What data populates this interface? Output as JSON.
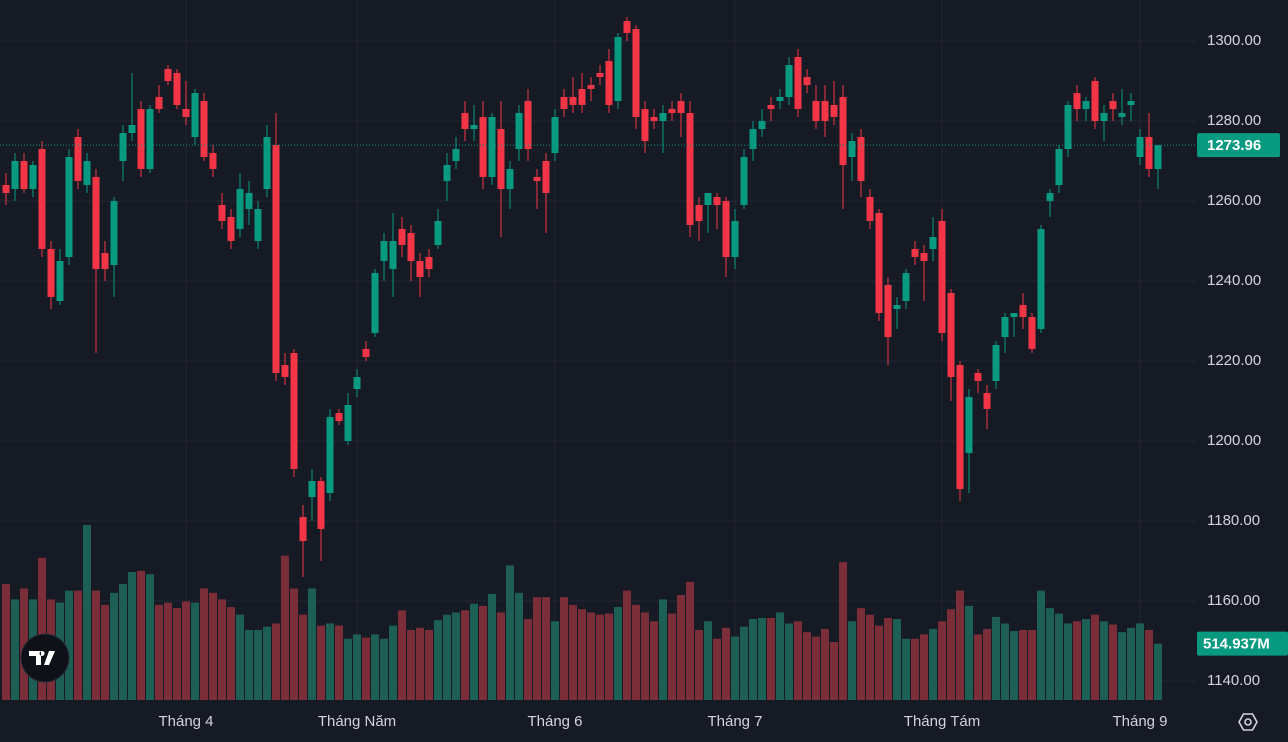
{
  "chart_data": {
    "type": "candlestick",
    "ylim": [
      1135.25,
      1310.25
    ],
    "yticks": [
      {
        "value": 1140,
        "label": "1140.00"
      },
      {
        "value": 1160,
        "label": "1160.00"
      },
      {
        "value": 1180,
        "label": "1180.00"
      },
      {
        "value": 1200,
        "label": "1200.00"
      },
      {
        "value": 1220,
        "label": "1220.00"
      },
      {
        "value": 1240,
        "label": "1240.00"
      },
      {
        "value": 1260,
        "label": "1260.00"
      },
      {
        "value": 1280,
        "label": "1280.00"
      },
      {
        "value": 1300,
        "label": "1300.00"
      }
    ],
    "grid": true,
    "up_color": "#089981",
    "down_color": "#f23645",
    "volume_up_color": "#1d5f55",
    "volume_down_color": "#7b2e38",
    "last_volume_label": "514.937M",
    "categories": [
      null,
      null,
      null,
      null,
      null,
      null,
      null,
      null,
      null,
      null,
      null,
      null,
      null,
      null,
      null,
      null,
      null,
      null,
      null,
      null,
      "Tháng 4",
      null,
      null,
      null,
      null,
      null,
      null,
      null,
      null,
      null,
      null,
      null,
      null,
      null,
      null,
      null,
      null,
      null,
      null,
      "Tháng Năm",
      null,
      null,
      null,
      null,
      null,
      null,
      null,
      null,
      null,
      null,
      null,
      null,
      null,
      null,
      null,
      null,
      null,
      null,
      null,
      null,
      null,
      "Tháng 6",
      null,
      null,
      null,
      null,
      null,
      null,
      null,
      null,
      null,
      null,
      null,
      null,
      null,
      null,
      null,
      null,
      null,
      null,
      null,
      "Tháng 7",
      null,
      null,
      null,
      null,
      null,
      null,
      null,
      null,
      null,
      null,
      null,
      null,
      null,
      null,
      null,
      null,
      null,
      null,
      null,
      null,
      null,
      null,
      "Tháng Tám",
      null,
      null,
      null,
      null,
      null,
      null,
      null,
      null,
      null,
      null,
      null,
      null,
      null,
      null,
      null,
      null,
      null,
      null,
      null,
      null,
      null,
      "Tháng 9",
      null,
      null
    ],
    "ohlc": [
      [
        1264,
        1267,
        1259,
        1262
      ],
      [
        1263,
        1272,
        1260,
        1270
      ],
      [
        1270,
        1272,
        1262,
        1263
      ],
      [
        1263,
        1270,
        1261,
        1269
      ],
      [
        1273,
        1275,
        1246,
        1248
      ],
      [
        1248,
        1250,
        1233,
        1236
      ],
      [
        1235,
        1248,
        1234,
        1245
      ],
      [
        1246,
        1273,
        1244,
        1271
      ],
      [
        1276,
        1278,
        1263,
        1265
      ],
      [
        1264,
        1272,
        1262,
        1270
      ],
      [
        1266,
        1268,
        1222,
        1243
      ],
      [
        1247,
        1250,
        1240,
        1243
      ],
      [
        1244,
        1261,
        1236,
        1260
      ],
      [
        1270,
        1279,
        1265,
        1277
      ],
      [
        1277,
        1292,
        1275,
        1279
      ],
      [
        1283,
        1285,
        1266,
        1268
      ],
      [
        1268,
        1284,
        1267,
        1283
      ],
      [
        1286,
        1289,
        1282,
        1283
      ],
      [
        1293,
        1294,
        1289,
        1290
      ],
      [
        1292,
        1293,
        1283,
        1284
      ],
      [
        1283,
        1290,
        1279,
        1281
      ],
      [
        1276,
        1288,
        1274,
        1287
      ],
      [
        1285,
        1287,
        1270,
        1271
      ],
      [
        1272,
        1274,
        1266,
        1268
      ],
      [
        1259,
        1262,
        1253,
        1255
      ],
      [
        1256,
        1258,
        1248,
        1250
      ],
      [
        1253,
        1267,
        1251,
        1263
      ],
      [
        1258,
        1265,
        1254,
        1262
      ],
      [
        1250,
        1260,
        1248,
        1258
      ],
      [
        1263,
        1279,
        1261,
        1276
      ],
      [
        1274,
        1282,
        1215,
        1217
      ],
      [
        1219,
        1222,
        1214,
        1216
      ],
      [
        1222,
        1223,
        1191,
        1193
      ],
      [
        1181,
        1184,
        1166,
        1175
      ],
      [
        1186,
        1193,
        1180,
        1190
      ],
      [
        1190,
        1191,
        1170,
        1178
      ],
      [
        1187,
        1208,
        1185,
        1206
      ],
      [
        1207,
        1208,
        1204,
        1205
      ],
      [
        1200,
        1212,
        1199,
        1209
      ],
      [
        1213,
        1218,
        1211,
        1216
      ],
      [
        1223,
        1225,
        1220,
        1221
      ],
      [
        1227,
        1243,
        1226,
        1242
      ],
      [
        1245,
        1252,
        1240,
        1250
      ],
      [
        1243,
        1257,
        1236,
        1250
      ],
      [
        1253,
        1256,
        1246,
        1249
      ],
      [
        1252,
        1254,
        1240,
        1245
      ],
      [
        1245,
        1247,
        1236,
        1241
      ],
      [
        1246,
        1248,
        1241,
        1243
      ],
      [
        1249,
        1258,
        1248,
        1255
      ],
      [
        1265,
        1272,
        1260,
        1269
      ],
      [
        1270,
        1276,
        1268,
        1273
      ],
      [
        1282,
        1285,
        1275,
        1278
      ],
      [
        1278,
        1284,
        1275,
        1279
      ],
      [
        1281,
        1285,
        1263,
        1266
      ],
      [
        1266,
        1282,
        1264,
        1281
      ],
      [
        1278,
        1285,
        1251,
        1263
      ],
      [
        1263,
        1270,
        1258,
        1268
      ],
      [
        1273,
        1284,
        1270,
        1282
      ],
      [
        1285,
        1288,
        1270,
        1273
      ],
      [
        1266,
        1268,
        1258,
        1265
      ],
      [
        1270,
        1272,
        1252,
        1262
      ],
      [
        1272,
        1283,
        1270,
        1281
      ],
      [
        1286,
        1288,
        1281,
        1283
      ],
      [
        1286,
        1291,
        1282,
        1284
      ],
      [
        1288,
        1292,
        1282,
        1284
      ],
      [
        1289,
        1291,
        1285,
        1288
      ],
      [
        1292,
        1294,
        1289,
        1291
      ],
      [
        1295,
        1298,
        1282,
        1284
      ],
      [
        1285,
        1302,
        1283,
        1301
      ],
      [
        1305,
        1306,
        1300,
        1302
      ],
      [
        1303,
        1304,
        1278,
        1281
      ],
      [
        1283,
        1285,
        1272,
        1275
      ],
      [
        1281,
        1283,
        1278,
        1280
      ],
      [
        1280,
        1284,
        1272,
        1282
      ],
      [
        1283,
        1285,
        1280,
        1282
      ],
      [
        1285,
        1287,
        1276,
        1282
      ],
      [
        1282,
        1285,
        1251,
        1254
      ],
      [
        1259,
        1261,
        1250,
        1255
      ],
      [
        1259,
        1262,
        1252,
        1262
      ],
      [
        1261,
        1262,
        1253,
        1259
      ],
      [
        1260,
        1261,
        1241,
        1246
      ],
      [
        1246,
        1258,
        1243,
        1255
      ],
      [
        1259,
        1273,
        1258,
        1271
      ],
      [
        1273,
        1280,
        1270,
        1278
      ],
      [
        1278,
        1283,
        1276,
        1280
      ],
      [
        1284,
        1286,
        1280,
        1283
      ],
      [
        1285,
        1288,
        1283,
        1286
      ],
      [
        1286,
        1296,
        1284,
        1294
      ],
      [
        1296,
        1298,
        1281,
        1283
      ],
      [
        1291,
        1293,
        1287,
        1289
      ],
      [
        1285,
        1289,
        1278,
        1280
      ],
      [
        1285,
        1289,
        1276,
        1280
      ],
      [
        1284,
        1290,
        1279,
        1281
      ],
      [
        1286,
        1289,
        1258,
        1269
      ],
      [
        1271,
        1277,
        1265,
        1275
      ],
      [
        1276,
        1278,
        1261,
        1265
      ],
      [
        1261,
        1263,
        1253,
        1255
      ],
      [
        1257,
        1258,
        1230,
        1232
      ],
      [
        1239,
        1241,
        1219,
        1226
      ],
      [
        1233,
        1236,
        1228,
        1234
      ],
      [
        1235,
        1243,
        1233,
        1242
      ],
      [
        1248,
        1250,
        1244,
        1246
      ],
      [
        1247,
        1249,
        1235,
        1245
      ],
      [
        1248,
        1256,
        1245,
        1251
      ],
      [
        1255,
        1258,
        1225,
        1227
      ],
      [
        1237,
        1238,
        1210,
        1216
      ],
      [
        1219,
        1220,
        1185,
        1188
      ],
      [
        1197,
        1213,
        1187,
        1211
      ],
      [
        1217,
        1218,
        1212,
        1215
      ],
      [
        1212,
        1214,
        1203,
        1208
      ],
      [
        1215,
        1225,
        1213,
        1224
      ],
      [
        1226,
        1232,
        1222,
        1231
      ],
      [
        1231,
        1232,
        1226,
        1232
      ],
      [
        1234,
        1237,
        1228,
        1231
      ],
      [
        1231,
        1232,
        1222,
        1223
      ],
      [
        1228,
        1254,
        1227,
        1253
      ],
      [
        1260,
        1263,
        1256,
        1262
      ],
      [
        1264,
        1274,
        1262,
        1273
      ],
      [
        1273,
        1285,
        1271,
        1284
      ],
      [
        1287,
        1289,
        1280,
        1283
      ],
      [
        1283,
        1286,
        1280,
        1285
      ],
      [
        1290,
        1291,
        1278,
        1280
      ],
      [
        1280,
        1284,
        1275,
        1282
      ],
      [
        1285,
        1287,
        1280,
        1283
      ],
      [
        1281,
        1288,
        1279,
        1282
      ],
      [
        1284,
        1287,
        1280,
        1285
      ],
      [
        1271,
        1278,
        1269,
        1276
      ],
      [
        1276,
        1282,
        1266,
        1268
      ],
      [
        1268,
        1274,
        1263,
        1273.96
      ]
    ],
    "volume": [
      1060,
      920,
      1020,
      920,
      1300,
      920,
      890,
      1000,
      1000,
      1600,
      1000,
      870,
      980,
      1060,
      1170,
      1180,
      1150,
      870,
      890,
      840,
      900,
      890,
      1020,
      980,
      920,
      850,
      780,
      640,
      640,
      670,
      700,
      1320,
      1020,
      780,
      1020,
      680,
      700,
      680,
      560,
      600,
      570,
      600,
      560,
      680,
      820,
      640,
      660,
      640,
      730,
      780,
      800,
      820,
      880,
      860,
      970,
      800,
      1230,
      980,
      740,
      940,
      940,
      720,
      940,
      870,
      830,
      800,
      780,
      790,
      850,
      1000,
      870,
      800,
      720,
      920,
      790,
      960,
      1080,
      640,
      720,
      560,
      660,
      580,
      670,
      740,
      750,
      750,
      800,
      700,
      720,
      620,
      580,
      650,
      530,
      1260,
      720,
      840,
      780,
      680,
      750,
      740,
      560,
      560,
      600,
      650,
      720,
      830,
      1000,
      860,
      600,
      650,
      760,
      700,
      630,
      640,
      640,
      1000,
      840,
      790,
      700,
      720,
      740,
      780,
      720,
      690,
      620,
      660,
      700,
      640,
      514.937
    ]
  }
}
